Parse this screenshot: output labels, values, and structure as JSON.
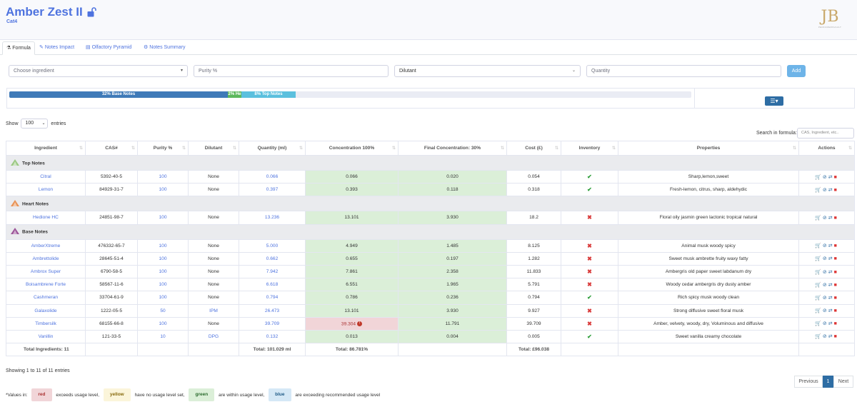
{
  "header": {
    "title": "Amber Zest II",
    "subtitle": "Cat4",
    "logo_text": "JB",
    "logo_tagline": "PERFUMERSVAULT"
  },
  "tabs": [
    {
      "label": "Formula",
      "icon": "flask-icon"
    },
    {
      "label": "Notes Impact",
      "icon": "pen-icon"
    },
    {
      "label": "Olfactory Pyramid",
      "icon": "pyramid-icon"
    },
    {
      "label": "Notes Summary",
      "icon": "gears-icon"
    }
  ],
  "form": {
    "ingredient_placeholder": "Choose ingredient",
    "purity_placeholder": "Purity %",
    "dilutant_value": "Dilutant",
    "quantity_placeholder": "Quantity",
    "add_label": "Add"
  },
  "progress": {
    "base": {
      "label": "32% Base Notes",
      "percent": 32,
      "color": "#3f7ab8"
    },
    "heart": {
      "label": "2% He",
      "percent": 2,
      "color": "#5cb85c"
    },
    "top": {
      "label": "8% Top Notes",
      "percent": 8,
      "color": "#5bc0de"
    }
  },
  "table_controls": {
    "show_label": "Show",
    "show_value": "100",
    "entries_label": "entries",
    "search_label": "Search in formula:",
    "search_placeholder": "CAS, Ingredient, etc.."
  },
  "columns": [
    "Ingredient",
    "CAS#",
    "Purity %",
    "Dilutant",
    "Quantity (ml)",
    "Concentration 100%",
    "Final Concentration: 30%",
    "Cost (£)",
    "Inventory",
    "Properties",
    "Actions"
  ],
  "groups": {
    "top": {
      "label": "Top Notes",
      "color": "#8dc26f"
    },
    "heart": {
      "label": "Heart Notes",
      "color": "#e8833a"
    },
    "base": {
      "label": "Base Notes",
      "color": "#8e3b8a"
    }
  },
  "rows": {
    "top": [
      {
        "name": "Citral",
        "cas": "5392-40-5",
        "purity": "100",
        "dilutant": "None",
        "qty": "0.066",
        "conc": "0.066",
        "final": "0.020",
        "cost": "0.054",
        "inv": "ok",
        "props": "Sharp,lemon,sweet"
      },
      {
        "name": "Lemon",
        "cas": "84929-31-7",
        "purity": "100",
        "dilutant": "None",
        "qty": "0.397",
        "conc": "0.393",
        "final": "0.118",
        "cost": "0.318",
        "inv": "ok",
        "props": "Fresh-lemon, citrus, sharp, aldehydic"
      }
    ],
    "heart": [
      {
        "name": "Hedione HC",
        "cas": "24851-98-7",
        "purity": "100",
        "dilutant": "None",
        "qty": "13.236",
        "conc": "13.101",
        "final": "3.930",
        "cost": "18.2",
        "inv": "no",
        "props": "Floral oily jasmin green lactonic tropical natural"
      }
    ],
    "base": [
      {
        "name": "AmberXtreme",
        "cas": "476332-65-7",
        "purity": "100",
        "dilutant": "None",
        "qty": "5.000",
        "conc": "4.949",
        "final": "1.485",
        "cost": "8.125",
        "inv": "no",
        "props": "Animal musk woody spicy"
      },
      {
        "name": "Ambrettolide",
        "cas": "28645-51-4",
        "purity": "100",
        "dilutant": "None",
        "qty": "0.662",
        "conc": "0.655",
        "final": "0.197",
        "cost": "1.282",
        "inv": "no",
        "props": "Sweet musk ambrette fruity waxy fatty"
      },
      {
        "name": "Ambrox Super",
        "cas": "6790-58-5",
        "purity": "100",
        "dilutant": "None",
        "qty": "7.942",
        "conc": "7.861",
        "final": "2.358",
        "cost": "11.833",
        "inv": "no",
        "props": "Ambergris old paper sweet labdanum dry"
      },
      {
        "name": "Boisambrene Forte",
        "cas": "58567-11-6",
        "purity": "100",
        "dilutant": "None",
        "qty": "6.618",
        "conc": "6.551",
        "final": "1.965",
        "cost": "5.791",
        "inv": "no",
        "props": "Woody cedar ambergris dry dusty amber"
      },
      {
        "name": "Cashmeran",
        "cas": "33704-61-9",
        "purity": "100",
        "dilutant": "None",
        "qty": "0.794",
        "conc": "0.786",
        "final": "0.236",
        "cost": "0.794",
        "inv": "ok",
        "props": "Rich spicy musk woody clean"
      },
      {
        "name": "Galaxolide",
        "cas": "1222-05-5",
        "purity": "50",
        "dilutant": "IPM",
        "qty": "26.473",
        "conc": "13.101",
        "final": "3.930",
        "cost": "9.927",
        "inv": "no",
        "props": "Strong diffusive sweet floral musk"
      },
      {
        "name": "Timbersilk",
        "cas": "68155-66-8",
        "purity": "100",
        "dilutant": "None",
        "qty": "39.709",
        "conc": "39.304",
        "final": "11.791",
        "cost": "39.709",
        "inv": "no",
        "props": "Amber, velvety, woody, dry, Voluminous and diffusive",
        "conc_status": "red"
      },
      {
        "name": "Vanillin",
        "cas": "121-33-5",
        "purity": "10",
        "dilutant": "DPG",
        "qty": "0.132",
        "conc": "0.013",
        "final": "0.004",
        "cost": "0.005",
        "inv": "ok",
        "props": "Sweet vanilla creamy chocolate"
      }
    ]
  },
  "totals": {
    "ingredients": "Total Ingredients: 11",
    "quantity": "Total: 101.029 ml",
    "concentration": "Total: 86.781%",
    "cost": "Total: £96.038"
  },
  "footer": {
    "showing": "Showing 1 to 11 of 11 entries",
    "previous": "Previous",
    "page": "1",
    "next": "Next"
  },
  "legend": {
    "prefix": "*Values in:",
    "red": "red",
    "red_text": "exceeds usage level,",
    "yellow": "yellow",
    "yellow_text": "have no usage level set,",
    "green": "green",
    "green_text": "are within usage level,",
    "blue": "blue",
    "blue_text": "are exceeding recommended usage level"
  }
}
